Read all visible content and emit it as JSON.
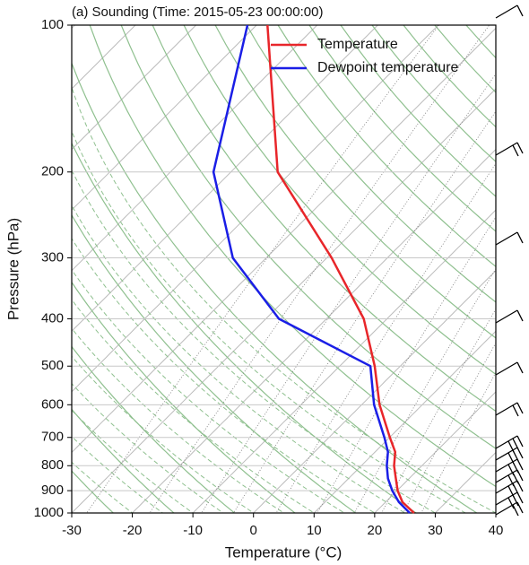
{
  "chart_data": {
    "type": "skewt",
    "title": "(a) Sounding (Time: 2015-05-23 00:00:00)",
    "xlabel": "Temperature (°C)",
    "ylabel": "Pressure (hPa)",
    "pressure": [
      1000,
      950,
      900,
      850,
      800,
      750,
      700,
      600,
      500,
      400,
      300,
      200,
      100
    ],
    "series": [
      {
        "name": "Temperature",
        "color": "#e8262a",
        "values": [
          26.5,
          24.6,
          23.8,
          23.5,
          23.2,
          23.4,
          22.5,
          20.8,
          20.0,
          18.2,
          12.9,
          4.0,
          2.3
        ]
      },
      {
        "name": "Dewpoint temperature",
        "color": "#1a1ee6",
        "values": [
          25.8,
          24.0,
          22.9,
          22.2,
          22.0,
          22.2,
          21.6,
          19.9,
          19.3,
          4.2,
          -3.4,
          -6.6,
          -1.0
        ]
      }
    ],
    "xlim": [
      -30,
      40
    ],
    "xticks": [
      -30,
      -20,
      -10,
      0,
      10,
      20,
      30,
      40
    ],
    "ylim": [
      1000,
      100
    ],
    "yticks": [
      100,
      200,
      300,
      400,
      500,
      600,
      700,
      800,
      900,
      1000
    ],
    "log_y": true,
    "grid": true,
    "legend": "upper right"
  }
}
